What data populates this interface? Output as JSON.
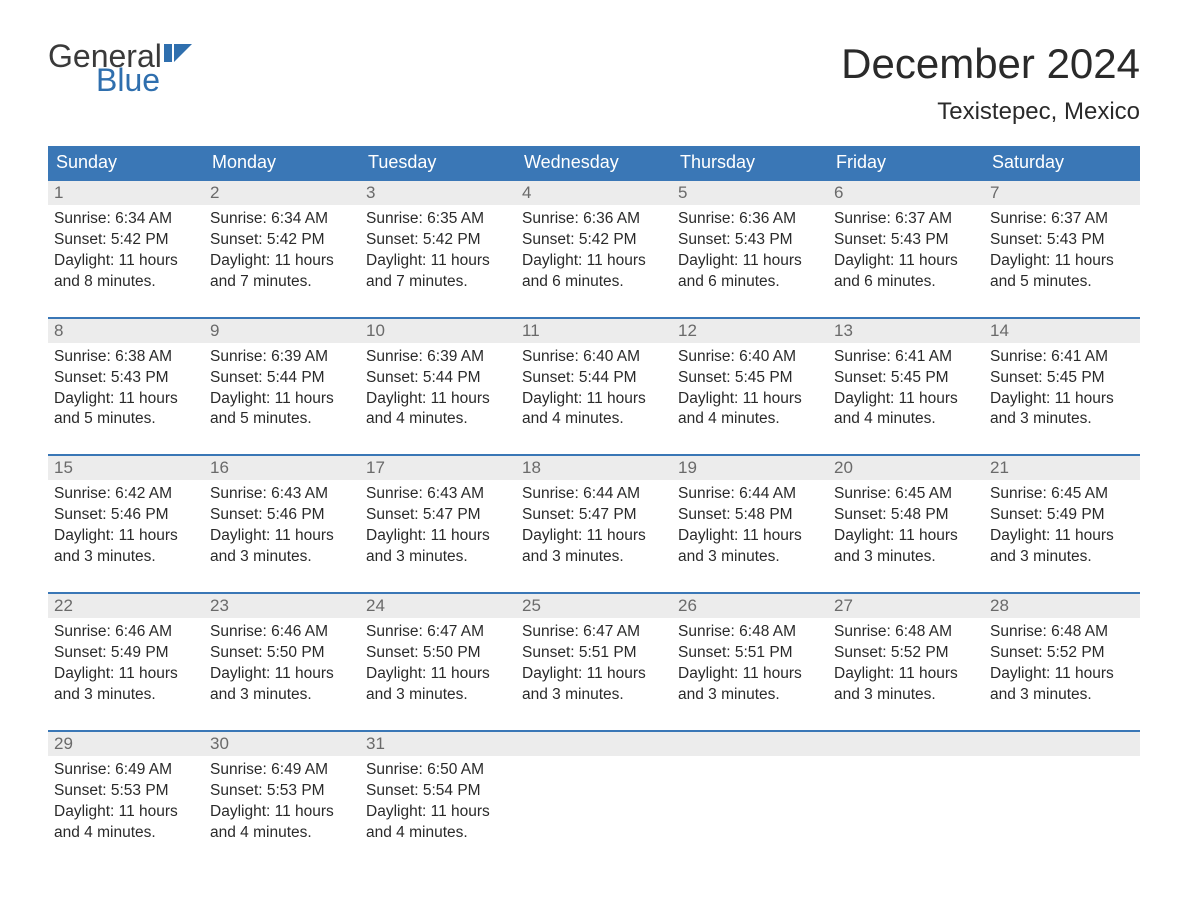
{
  "logo": {
    "text1": "General",
    "text2": "Blue",
    "icon_color": "#2f6fae",
    "text1_color": "#3a3a3a"
  },
  "title": "December 2024",
  "location": "Texistepec, Mexico",
  "colors": {
    "header_bg": "#3a77b6",
    "header_text": "#ffffff",
    "daynum_bg": "#ececec",
    "daynum_text": "#6a6a6a",
    "body_text": "#2a2a2a",
    "week_border": "#3a77b6",
    "page_bg": "#ffffff"
  },
  "fonts": {
    "title_size_pt": 32,
    "location_size_pt": 18,
    "header_size_pt": 14,
    "daynum_size_pt": 13,
    "body_size_pt": 12
  },
  "headers": [
    "Sunday",
    "Monday",
    "Tuesday",
    "Wednesday",
    "Thursday",
    "Friday",
    "Saturday"
  ],
  "weeks": [
    [
      {
        "n": "1",
        "sunrise": "6:34 AM",
        "sunset": "5:42 PM",
        "dl": "11 hours and 8 minutes."
      },
      {
        "n": "2",
        "sunrise": "6:34 AM",
        "sunset": "5:42 PM",
        "dl": "11 hours and 7 minutes."
      },
      {
        "n": "3",
        "sunrise": "6:35 AM",
        "sunset": "5:42 PM",
        "dl": "11 hours and 7 minutes."
      },
      {
        "n": "4",
        "sunrise": "6:36 AM",
        "sunset": "5:42 PM",
        "dl": "11 hours and 6 minutes."
      },
      {
        "n": "5",
        "sunrise": "6:36 AM",
        "sunset": "5:43 PM",
        "dl": "11 hours and 6 minutes."
      },
      {
        "n": "6",
        "sunrise": "6:37 AM",
        "sunset": "5:43 PM",
        "dl": "11 hours and 6 minutes."
      },
      {
        "n": "7",
        "sunrise": "6:37 AM",
        "sunset": "5:43 PM",
        "dl": "11 hours and 5 minutes."
      }
    ],
    [
      {
        "n": "8",
        "sunrise": "6:38 AM",
        "sunset": "5:43 PM",
        "dl": "11 hours and 5 minutes."
      },
      {
        "n": "9",
        "sunrise": "6:39 AM",
        "sunset": "5:44 PM",
        "dl": "11 hours and 5 minutes."
      },
      {
        "n": "10",
        "sunrise": "6:39 AM",
        "sunset": "5:44 PM",
        "dl": "11 hours and 4 minutes."
      },
      {
        "n": "11",
        "sunrise": "6:40 AM",
        "sunset": "5:44 PM",
        "dl": "11 hours and 4 minutes."
      },
      {
        "n": "12",
        "sunrise": "6:40 AM",
        "sunset": "5:45 PM",
        "dl": "11 hours and 4 minutes."
      },
      {
        "n": "13",
        "sunrise": "6:41 AM",
        "sunset": "5:45 PM",
        "dl": "11 hours and 4 minutes."
      },
      {
        "n": "14",
        "sunrise": "6:41 AM",
        "sunset": "5:45 PM",
        "dl": "11 hours and 3 minutes."
      }
    ],
    [
      {
        "n": "15",
        "sunrise": "6:42 AM",
        "sunset": "5:46 PM",
        "dl": "11 hours and 3 minutes."
      },
      {
        "n": "16",
        "sunrise": "6:43 AM",
        "sunset": "5:46 PM",
        "dl": "11 hours and 3 minutes."
      },
      {
        "n": "17",
        "sunrise": "6:43 AM",
        "sunset": "5:47 PM",
        "dl": "11 hours and 3 minutes."
      },
      {
        "n": "18",
        "sunrise": "6:44 AM",
        "sunset": "5:47 PM",
        "dl": "11 hours and 3 minutes."
      },
      {
        "n": "19",
        "sunrise": "6:44 AM",
        "sunset": "5:48 PM",
        "dl": "11 hours and 3 minutes."
      },
      {
        "n": "20",
        "sunrise": "6:45 AM",
        "sunset": "5:48 PM",
        "dl": "11 hours and 3 minutes."
      },
      {
        "n": "21",
        "sunrise": "6:45 AM",
        "sunset": "5:49 PM",
        "dl": "11 hours and 3 minutes."
      }
    ],
    [
      {
        "n": "22",
        "sunrise": "6:46 AM",
        "sunset": "5:49 PM",
        "dl": "11 hours and 3 minutes."
      },
      {
        "n": "23",
        "sunrise": "6:46 AM",
        "sunset": "5:50 PM",
        "dl": "11 hours and 3 minutes."
      },
      {
        "n": "24",
        "sunrise": "6:47 AM",
        "sunset": "5:50 PM",
        "dl": "11 hours and 3 minutes."
      },
      {
        "n": "25",
        "sunrise": "6:47 AM",
        "sunset": "5:51 PM",
        "dl": "11 hours and 3 minutes."
      },
      {
        "n": "26",
        "sunrise": "6:48 AM",
        "sunset": "5:51 PM",
        "dl": "11 hours and 3 minutes."
      },
      {
        "n": "27",
        "sunrise": "6:48 AM",
        "sunset": "5:52 PM",
        "dl": "11 hours and 3 minutes."
      },
      {
        "n": "28",
        "sunrise": "6:48 AM",
        "sunset": "5:52 PM",
        "dl": "11 hours and 3 minutes."
      }
    ],
    [
      {
        "n": "29",
        "sunrise": "6:49 AM",
        "sunset": "5:53 PM",
        "dl": "11 hours and 4 minutes."
      },
      {
        "n": "30",
        "sunrise": "6:49 AM",
        "sunset": "5:53 PM",
        "dl": "11 hours and 4 minutes."
      },
      {
        "n": "31",
        "sunrise": "6:50 AM",
        "sunset": "5:54 PM",
        "dl": "11 hours and 4 minutes."
      },
      null,
      null,
      null,
      null
    ]
  ],
  "labels": {
    "sunrise": "Sunrise: ",
    "sunset": "Sunset: ",
    "daylight": "Daylight: "
  }
}
